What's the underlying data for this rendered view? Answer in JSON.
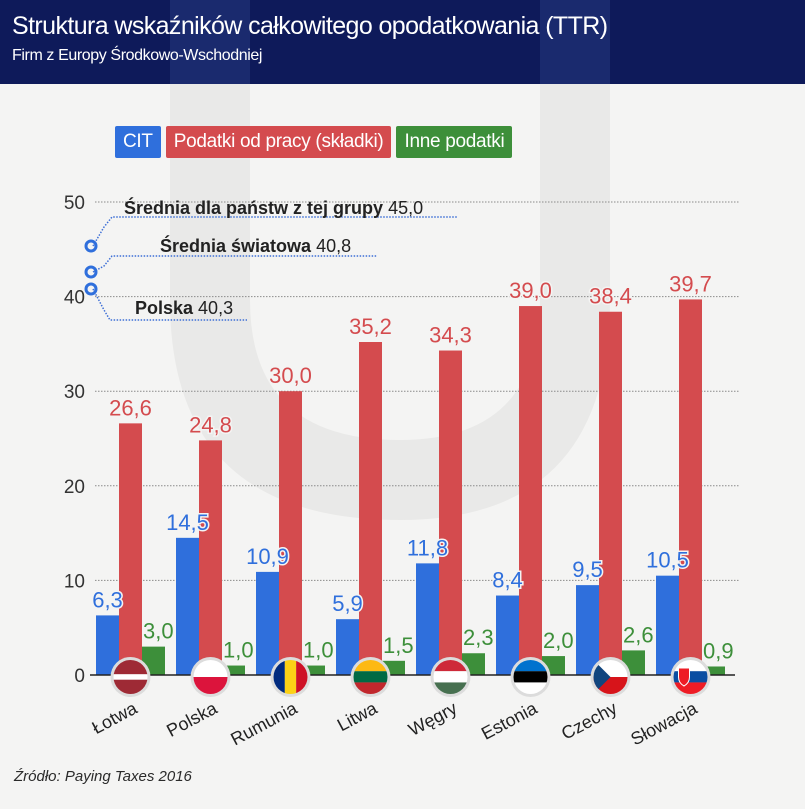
{
  "header": {
    "title": "Struktura wskaźników całkowitego opodatkowania (TTR)",
    "subtitle": "Firm z Europy Środkowo-Wschodniej"
  },
  "legend": [
    {
      "label": "CIT",
      "color": "#2f6fdc"
    },
    {
      "label": "Podatki od pracy (składki)",
      "color": "#d44b4e"
    },
    {
      "label": "Inne podatki",
      "color": "#3d8f3a"
    }
  ],
  "source": "Źródło: Paying Taxes 2016",
  "chart_data": {
    "type": "bar",
    "title": "Struktura wskaźników całkowitego opodatkowania (TTR)",
    "subtitle": "Firm z Europy Środkowo-Wschodniej",
    "xlabel": "",
    "ylabel": "",
    "ylim": [
      0,
      50
    ],
    "yticks": [
      0,
      10,
      20,
      30,
      40,
      50
    ],
    "grid": true,
    "legend_position": "top-left",
    "categories": [
      "Łotwa",
      "Polska",
      "Rumunia",
      "Litwa",
      "Węgry",
      "Estonia",
      "Czechy",
      "Słowacja"
    ],
    "flags": [
      "latvia",
      "poland",
      "romania",
      "lithuania",
      "hungary",
      "estonia",
      "czechia",
      "slovakia"
    ],
    "series": [
      {
        "name": "CIT",
        "color": "#2f6fdc",
        "values": [
          6.3,
          14.5,
          10.9,
          5.9,
          11.8,
          8.4,
          9.5,
          10.5
        ],
        "labels": [
          "6,3",
          "14,5",
          "10,9",
          "5,9",
          "11,8",
          "8,4",
          "9,5",
          "10,5"
        ]
      },
      {
        "name": "Podatki od pracy (składki)",
        "color": "#d44b4e",
        "values": [
          26.6,
          24.8,
          30.0,
          35.2,
          34.3,
          39.0,
          38.4,
          39.7
        ],
        "labels": [
          "26,6",
          "24,8",
          "30,0",
          "35,2",
          "34,3",
          "39,0",
          "38,4",
          "39,7"
        ]
      },
      {
        "name": "Inne podatki",
        "color": "#3d8f3a",
        "values": [
          3.0,
          1.0,
          1.0,
          1.5,
          2.3,
          2.0,
          2.6,
          0.9
        ],
        "labels": [
          "3,0",
          "1,0",
          "1,0",
          "1,5",
          "2,3",
          "2,0",
          "2,6",
          "0,9"
        ]
      }
    ],
    "annotations": [
      {
        "label": "Średnia dla państw z tej grupy",
        "value": 45.0,
        "value_label": "45,0"
      },
      {
        "label": "Średnia światowa",
        "value": 40.8,
        "value_label": "40,8"
      },
      {
        "label": "Polska",
        "value": 40.3,
        "value_label": "40,3"
      }
    ]
  }
}
